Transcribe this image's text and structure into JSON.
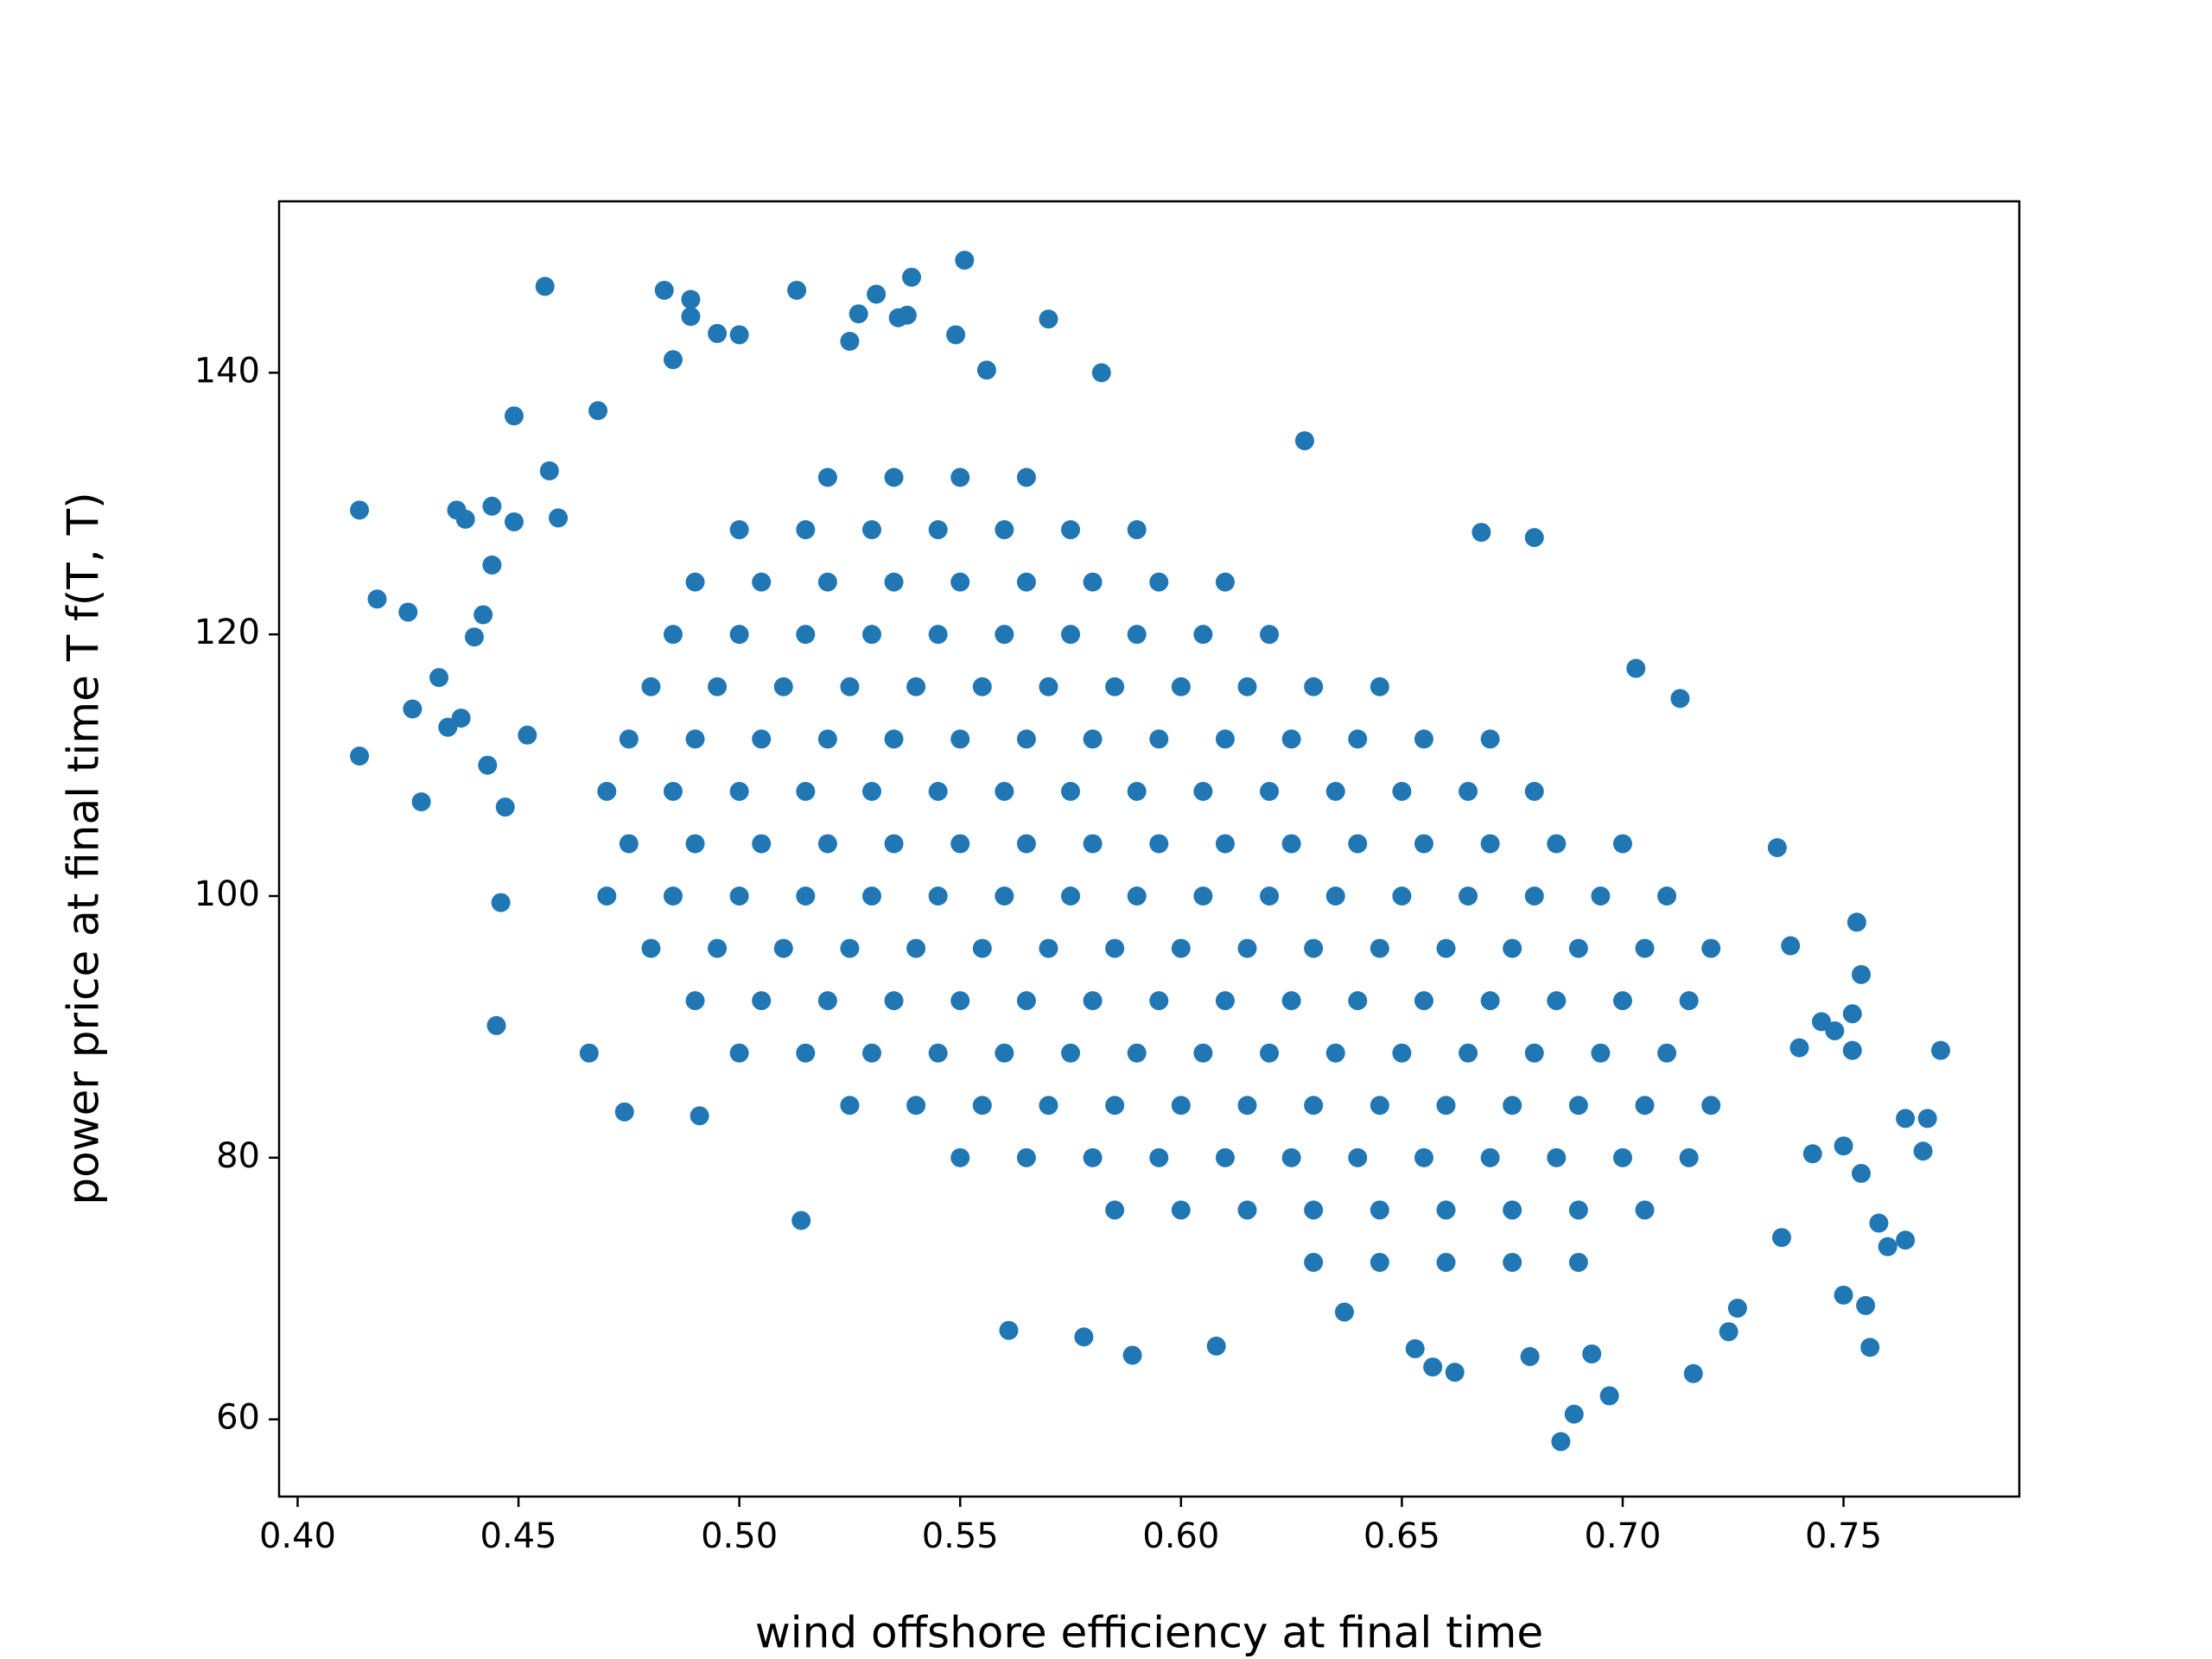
{
  "chart_data": {
    "type": "scatter",
    "xlabel": "wind offshore efficiency at final time",
    "ylabel": "power price at final time T f(T, T)",
    "color": "#2077b4",
    "xlim": [
      0.3958,
      0.7898
    ],
    "ylim": [
      54.1,
      153.1
    ],
    "xticks": [
      {
        "value": 0.4,
        "label": "0.40"
      },
      0.45,
      {
        "value": 0.5,
        "label": "0.50"
      },
      0.55,
      {
        "value": 0.6,
        "label": "0.60"
      },
      0.65,
      {
        "value": 0.7,
        "label": "0.70"
      },
      0.75
    ],
    "yticks": [
      60,
      80,
      100,
      120,
      140
    ],
    "x": [
      0.414,
      0.414,
      0.418,
      0.425,
      0.426,
      0.428,
      0.432,
      0.434,
      0.436,
      0.437,
      0.438,
      0.44,
      0.442,
      0.443,
      0.444,
      0.444,
      0.445,
      0.446,
      0.449,
      0.449,
      0.447,
      0.452,
      0.456,
      0.457,
      0.459,
      0.466,
      0.468,
      0.474,
      0.483,
      0.485,
      0.489,
      0.489,
      0.491,
      0.495,
      0.5,
      0.513,
      0.514,
      0.525,
      0.527,
      0.531,
      0.536,
      0.538,
      0.539,
      0.549,
      0.551,
      0.556,
      0.561,
      0.57,
      0.578,
      0.582,
      0.589,
      0.608,
      0.628,
      0.653,
      0.662,
      0.668,
      0.68,
      0.686,
      0.689,
      0.697,
      0.703,
      0.713,
      0.716,
      0.724,
      0.735,
      0.738,
      0.74,
      0.745,
      0.748,
      0.75,
      0.752,
      0.752,
      0.753,
      0.754,
      0.754,
      0.755,
      0.756,
      0.758,
      0.76,
      0.764,
      0.764,
      0.768,
      0.769,
      0.772,
      0.75,
      0.743,
      0.736,
      0.726,
      0.693,
      0.679,
      0.657,
      0.637,
      0.63,
      0.645,
      0.66,
      0.675,
      0.69,
      0.585,
      0.6,
      0.615,
      0.63,
      0.645,
      0.66,
      0.675,
      0.69,
      0.705,
      0.55,
      0.565,
      0.58,
      0.595,
      0.61,
      0.625,
      0.64,
      0.655,
      0.67,
      0.685,
      0.7,
      0.715,
      0.525,
      0.54,
      0.555,
      0.57,
      0.585,
      0.6,
      0.615,
      0.63,
      0.645,
      0.66,
      0.675,
      0.69,
      0.705,
      0.72,
      0.5,
      0.515,
      0.53,
      0.545,
      0.56,
      0.575,
      0.59,
      0.605,
      0.62,
      0.635,
      0.65,
      0.665,
      0.68,
      0.695,
      0.71,
      0.49,
      0.505,
      0.52,
      0.535,
      0.55,
      0.565,
      0.58,
      0.595,
      0.61,
      0.625,
      0.64,
      0.655,
      0.67,
      0.685,
      0.7,
      0.715,
      0.48,
      0.495,
      0.51,
      0.525,
      0.54,
      0.555,
      0.57,
      0.585,
      0.6,
      0.615,
      0.63,
      0.645,
      0.66,
      0.675,
      0.69,
      0.705,
      0.72,
      0.47,
      0.485,
      0.5,
      0.515,
      0.53,
      0.545,
      0.56,
      0.575,
      0.59,
      0.605,
      0.62,
      0.635,
      0.65,
      0.665,
      0.68,
      0.695,
      0.71,
      0.475,
      0.49,
      0.505,
      0.52,
      0.535,
      0.55,
      0.565,
      0.58,
      0.595,
      0.61,
      0.625,
      0.64,
      0.655,
      0.67,
      0.685,
      0.7,
      0.47,
      0.485,
      0.5,
      0.515,
      0.53,
      0.545,
      0.56,
      0.575,
      0.59,
      0.605,
      0.62,
      0.635,
      0.65,
      0.665,
      0.68,
      0.475,
      0.49,
      0.505,
      0.52,
      0.535,
      0.55,
      0.565,
      0.58,
      0.595,
      0.61,
      0.625,
      0.64,
      0.655,
      0.67,
      0.48,
      0.495,
      0.51,
      0.525,
      0.54,
      0.555,
      0.57,
      0.585,
      0.6,
      0.615,
      0.63,
      0.645,
      0.485,
      0.5,
      0.515,
      0.53,
      0.545,
      0.56,
      0.575,
      0.59,
      0.605,
      0.62,
      0.49,
      0.505,
      0.52,
      0.535,
      0.55,
      0.565,
      0.58,
      0.595,
      0.61,
      0.5,
      0.515,
      0.53,
      0.545,
      0.56,
      0.575,
      0.59,
      0.52,
      0.535,
      0.55,
      0.565
    ],
    "values": [
      129.5,
      110.7,
      122.7,
      121.7,
      114.3,
      107.2,
      116.7,
      112.9,
      129.5,
      113.6,
      128.8,
      119.8,
      121.5,
      110.0,
      125.3,
      129.8,
      90.1,
      99.5,
      136.7,
      128.6,
      106.8,
      112.3,
      146.6,
      132.5,
      128.9,
      88.0,
      137.1,
      83.5,
      146.3,
      141.0,
      145.6,
      144.3,
      83.2,
      143.0,
      142.9,
      146.3,
      75.2,
      142.4,
      144.5,
      146.0,
      144.2,
      144.4,
      147.3,
      142.9,
      148.6,
      140.2,
      66.8,
      144.1,
      66.3,
      140.0,
      64.9,
      65.6,
      134.8,
      65.4,
      63.6,
      127.8,
      127.4,
      58.3,
      60.4,
      61.8,
      117.4,
      115.1,
      63.5,
      66.7,
      103.7,
      96.2,
      88.4,
      90.4,
      89.7,
      80.9,
      91.0,
      88.2,
      98.0,
      94.0,
      78.8,
      68.7,
      65.5,
      75.0,
      73.2,
      83.0,
      73.7,
      80.5,
      83.0,
      88.2,
      69.5,
      80.3,
      73.9,
      68.5,
      65.0,
      64.8,
      64.0,
      68.2,
      72,
      72,
      72,
      72,
      72,
      76,
      76,
      76,
      76,
      76,
      76,
      76,
      76,
      76,
      80,
      80,
      80,
      80,
      80,
      80,
      80,
      80,
      80,
      80,
      80,
      80,
      84,
      84,
      84,
      84,
      84,
      84,
      84,
      84,
      84,
      84,
      84,
      84,
      84,
      84,
      88,
      88,
      88,
      88,
      88,
      88,
      88,
      88,
      88,
      88,
      88,
      88,
      88,
      88,
      88,
      92,
      92,
      92,
      92,
      92,
      92,
      92,
      92,
      92,
      92,
      92,
      92,
      92,
      92,
      92,
      92,
      96,
      96,
      96,
      96,
      96,
      96,
      96,
      96,
      96,
      96,
      96,
      96,
      96,
      96,
      96,
      96,
      96,
      100,
      100,
      100,
      100,
      100,
      100,
      100,
      100,
      100,
      100,
      100,
      100,
      100,
      100,
      100,
      100,
      100,
      104,
      104,
      104,
      104,
      104,
      104,
      104,
      104,
      104,
      104,
      104,
      104,
      104,
      104,
      104,
      104,
      108,
      108,
      108,
      108,
      108,
      108,
      108,
      108,
      108,
      108,
      108,
      108,
      108,
      108,
      108,
      112,
      112,
      112,
      112,
      112,
      112,
      112,
      112,
      112,
      112,
      112,
      112,
      112,
      112,
      116,
      116,
      116,
      116,
      116,
      116,
      116,
      116,
      116,
      116,
      116,
      116,
      120,
      120,
      120,
      120,
      120,
      120,
      120,
      120,
      120,
      120,
      124,
      124,
      124,
      124,
      124,
      124,
      124,
      124,
      124,
      128,
      128,
      128,
      128,
      128,
      128,
      128,
      132,
      132,
      132,
      132
    ]
  }
}
